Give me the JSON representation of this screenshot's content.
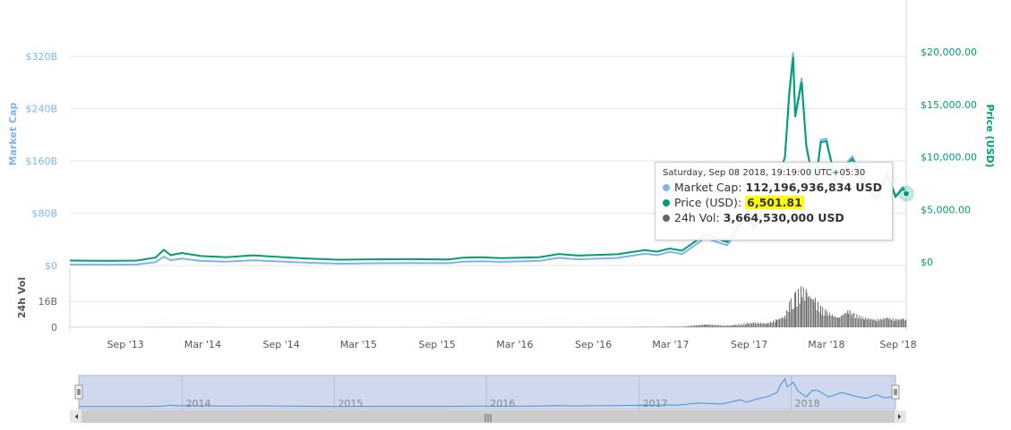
{
  "chart_data": {
    "type": "line",
    "axes": {
      "left": {
        "title": "Market Cap",
        "ticks": [
          "$0",
          "$80B",
          "$160B",
          "$240B",
          "$320B"
        ],
        "range": [
          0,
          320
        ],
        "unit": "B USD",
        "color": "#7cb5ec"
      },
      "right": {
        "title": "Price (USD)",
        "ticks": [
          "$0",
          "$5,000.00",
          "$10,000.00",
          "$15,000.00",
          "$20,000.00"
        ],
        "range": [
          0,
          20000
        ],
        "color": "#009e73"
      },
      "volume": {
        "title": "24h Vol",
        "ticks": [
          "0",
          "16B"
        ],
        "range": [
          0,
          32
        ]
      },
      "x": {
        "ticks": [
          "Sep '13",
          "Mar '14",
          "Sep '14",
          "Mar '15",
          "Sep '15",
          "Mar '16",
          "Sep '16",
          "Mar '17",
          "Sep '17",
          "Mar '18",
          "Sep '18"
        ],
        "range": [
          "2013-04-28",
          "2018-09-08"
        ]
      }
    },
    "grid": true,
    "series": [
      {
        "name": "Market Cap",
        "color": "#7cb5ec"
      },
      {
        "name": "Price (USD)",
        "color": "#009e73"
      },
      {
        "name": "24h Vol",
        "color": "#666666"
      }
    ],
    "columns": [
      "date",
      "price_usd",
      "market_cap_B",
      "volume_B"
    ],
    "rows": [
      [
        "2013-04-28",
        135,
        1.5,
        0
      ],
      [
        "2013-06-01",
        120,
        1.3,
        0
      ],
      [
        "2013-08-01",
        100,
        1.2,
        0
      ],
      [
        "2013-10-01",
        125,
        1.5,
        0
      ],
      [
        "2013-11-15",
        420,
        5,
        0.05
      ],
      [
        "2013-12-04",
        1150,
        13.5,
        0.1
      ],
      [
        "2013-12-20",
        650,
        8,
        0.05
      ],
      [
        "2014-01-15",
        850,
        10.5,
        0.05
      ],
      [
        "2014-03-01",
        560,
        7,
        0.03
      ],
      [
        "2014-05-01",
        450,
        5.8,
        0.02
      ],
      [
        "2014-07-01",
        630,
        8,
        0.02
      ],
      [
        "2014-09-01",
        470,
        6.2,
        0.02
      ],
      [
        "2014-11-01",
        330,
        4.5,
        0.02
      ],
      [
        "2015-01-15",
        210,
        2.9,
        0.03
      ],
      [
        "2015-04-01",
        245,
        3.4,
        0.02
      ],
      [
        "2015-07-01",
        260,
        3.7,
        0.02
      ],
      [
        "2015-10-01",
        240,
        3.5,
        0.03
      ],
      [
        "2015-11-05",
        400,
        5.8,
        0.1
      ],
      [
        "2015-12-15",
        450,
        6.6,
        0.05
      ],
      [
        "2016-02-01",
        370,
        5.6,
        0.05
      ],
      [
        "2016-05-01",
        450,
        7,
        0.05
      ],
      [
        "2016-06-17",
        760,
        11.8,
        0.1
      ],
      [
        "2016-08-01",
        600,
        9.4,
        0.05
      ],
      [
        "2016-11-01",
        730,
        11.6,
        0.08
      ],
      [
        "2017-01-04",
        1130,
        18,
        0.2
      ],
      [
        "2017-02-01",
        980,
        16,
        0.15
      ],
      [
        "2017-03-03",
        1280,
        21,
        0.3
      ],
      [
        "2017-04-01",
        1080,
        17.6,
        0.3
      ],
      [
        "2017-05-25",
        2600,
        42,
        1.5
      ],
      [
        "2017-07-15",
        1900,
        31,
        0.8
      ],
      [
        "2017-08-01",
        2750,
        45,
        1.2
      ],
      [
        "2017-09-01",
        4900,
        81,
        2
      ],
      [
        "2017-09-15",
        3200,
        53,
        2.5
      ],
      [
        "2017-10-15",
        5700,
        95,
        2
      ],
      [
        "2017-11-08",
        7400,
        123,
        4
      ],
      [
        "2017-11-28",
        10000,
        167,
        6
      ],
      [
        "2017-12-08",
        16000,
        267,
        13
      ],
      [
        "2017-12-17",
        19500,
        326,
        15
      ],
      [
        "2017-12-22",
        13800,
        231,
        17
      ],
      [
        "2018-01-06",
        17100,
        287,
        20
      ],
      [
        "2018-01-17",
        11000,
        185,
        18
      ],
      [
        "2018-02-06",
        6900,
        116,
        14
      ],
      [
        "2018-02-20",
        11400,
        192,
        10
      ],
      [
        "2018-03-05",
        11500,
        194,
        8
      ],
      [
        "2018-04-01",
        6800,
        115,
        5
      ],
      [
        "2018-04-25",
        9400,
        160,
        9
      ],
      [
        "2018-05-05",
        9800,
        167,
        7
      ],
      [
        "2018-06-01",
        7500,
        128,
        5
      ],
      [
        "2018-06-29",
        5900,
        101,
        4
      ],
      [
        "2018-07-25",
        8300,
        142,
        5
      ],
      [
        "2018-08-14",
        6200,
        107,
        4
      ],
      [
        "2018-08-31",
        7000,
        120,
        4.5
      ],
      [
        "2018-09-08",
        6501.81,
        112.2,
        3.66
      ]
    ],
    "navigator": {
      "labels": [
        "2014",
        "2015",
        "2016",
        "2017",
        "2018"
      ]
    }
  },
  "tooltip": {
    "date": "Saturday, Sep 08 2018, 19:19:00 UTC+05:30",
    "market_cap_label": "Market Cap:",
    "market_cap": "112,196,936,834 USD",
    "price_label": "Price (USD):",
    "price": "6,501.81",
    "vol_label": "24h Vol:",
    "vol": "3,664,530,000 USD"
  }
}
